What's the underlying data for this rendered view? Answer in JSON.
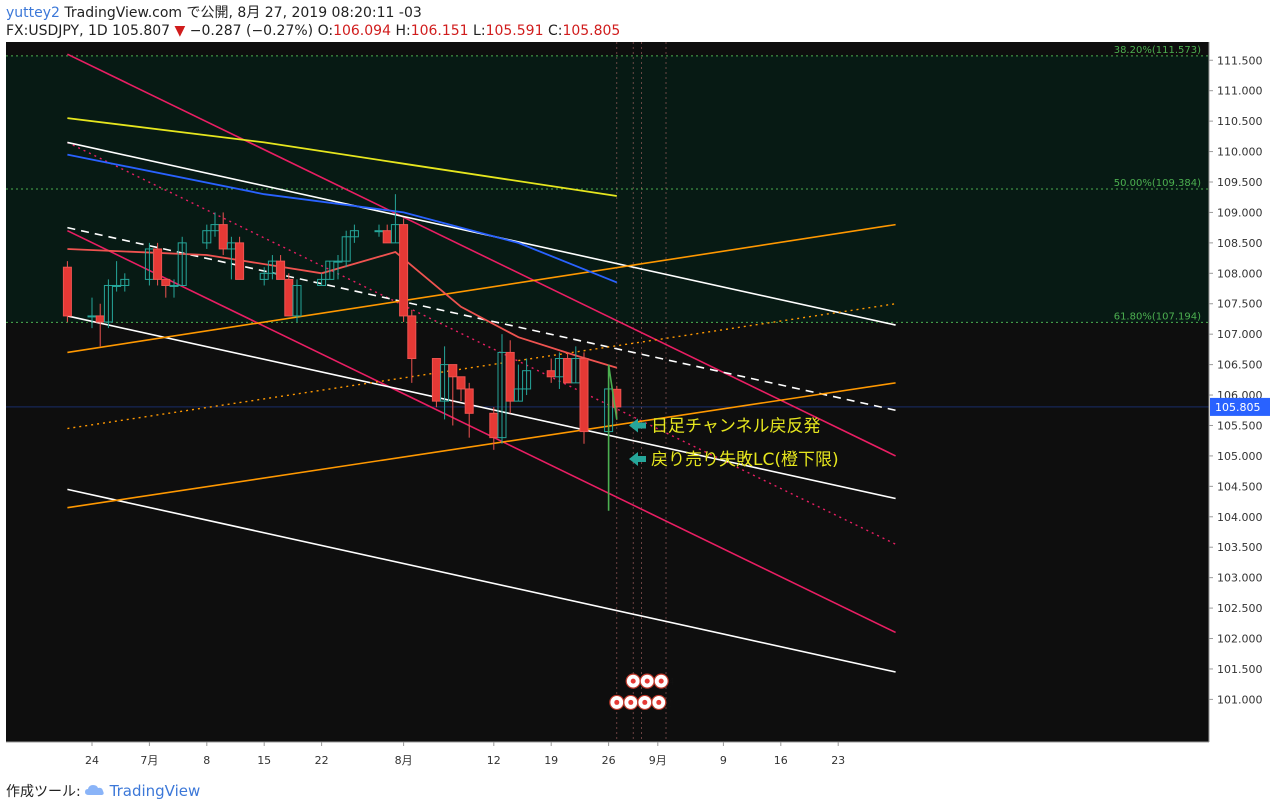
{
  "header": {
    "author": "yuttey2",
    "published": "TradingView.com で公開, 8月 27, 2019 08:20:11 -03",
    "symbol": "FX:USDJPY, 1D",
    "last": "105.807",
    "arrow": "▼",
    "change": "−0.287 (−0.27%)",
    "o_label": "O:",
    "o": "106.094",
    "h_label": "H:",
    "h": "106.151",
    "l_label": "L:",
    "l": "105.591",
    "c_label": "C:",
    "c": "105.805"
  },
  "footer": {
    "made_with": "作成ツール:",
    "brand": "TradingView",
    "logo_icon": "tradingview-cloud-icon"
  },
  "colors": {
    "bg_upper": "#071a14",
    "bg_lower": "#0e0e0e",
    "axis_bg": "#ffffff",
    "bull": "#26a69a",
    "bear": "#ef5350",
    "bear_fill": "#e53935",
    "pink": "#e91e63",
    "orange": "#ff9800",
    "white": "#ffffff",
    "yellow": "#e6e61e",
    "blue": "#2962ff",
    "fib": "#4caf50",
    "annotation": "#e6e61e",
    "arrow": "#26a69a",
    "price_tag": "#2962ff"
  },
  "chart_data": {
    "type": "candlestick",
    "symbol": "USDJPY",
    "interval": "1D",
    "ylim": [
      100.3,
      111.8
    ],
    "y_ticks": [
      "111.500",
      "111.000",
      "110.500",
      "110.000",
      "109.500",
      "109.000",
      "108.500",
      "108.000",
      "107.500",
      "107.000",
      "106.500",
      "106.000",
      "105.500",
      "105.000",
      "104.500",
      "104.000",
      "103.500",
      "103.000",
      "102.500",
      "102.000",
      "101.500",
      "101.000"
    ],
    "x_ticks": [
      "24",
      "7月",
      "8",
      "15",
      "22",
      "8月",
      "12",
      "19",
      "26",
      "9月",
      "9",
      "16",
      "23"
    ],
    "x_tick_dates": [
      "2019-06-24",
      "2019-07-01",
      "2019-07-08",
      "2019-07-15",
      "2019-07-22",
      "2019-08-01",
      "2019-08-12",
      "2019-08-19",
      "2019-08-26",
      "2019-09-01",
      "2019-09-09",
      "2019-09-16",
      "2019-09-23"
    ],
    "candles": [
      {
        "d": "2019-06-21",
        "o": 108.1,
        "h": 108.2,
        "l": 107.2,
        "c": 107.3
      },
      {
        "d": "2019-06-24",
        "o": 107.3,
        "h": 107.6,
        "l": 107.1,
        "c": 107.3
      },
      {
        "d": "2019-06-25",
        "o": 107.3,
        "h": 107.5,
        "l": 106.8,
        "c": 107.2
      },
      {
        "d": "2019-06-26",
        "o": 107.2,
        "h": 107.9,
        "l": 107.1,
        "c": 107.8
      },
      {
        "d": "2019-06-27",
        "o": 107.8,
        "h": 108.2,
        "l": 107.7,
        "c": 107.8
      },
      {
        "d": "2019-06-28",
        "o": 107.8,
        "h": 108.0,
        "l": 107.7,
        "c": 107.9
      },
      {
        "d": "2019-07-01",
        "o": 107.9,
        "h": 108.5,
        "l": 107.8,
        "c": 108.4
      },
      {
        "d": "2019-07-02",
        "o": 108.4,
        "h": 108.5,
        "l": 107.8,
        "c": 107.9
      },
      {
        "d": "2019-07-03",
        "o": 107.9,
        "h": 107.9,
        "l": 107.6,
        "c": 107.8
      },
      {
        "d": "2019-07-04",
        "o": 107.8,
        "h": 107.9,
        "l": 107.6,
        "c": 107.8
      },
      {
        "d": "2019-07-05",
        "o": 107.8,
        "h": 108.6,
        "l": 107.8,
        "c": 108.5
      },
      {
        "d": "2019-07-08",
        "o": 108.5,
        "h": 108.8,
        "l": 108.4,
        "c": 108.7
      },
      {
        "d": "2019-07-09",
        "o": 108.7,
        "h": 109.0,
        "l": 108.6,
        "c": 108.8
      },
      {
        "d": "2019-07-10",
        "o": 108.8,
        "h": 109.0,
        "l": 108.3,
        "c": 108.4
      },
      {
        "d": "2019-07-11",
        "o": 108.4,
        "h": 108.6,
        "l": 107.9,
        "c": 108.5
      },
      {
        "d": "2019-07-12",
        "o": 108.5,
        "h": 108.6,
        "l": 107.9,
        "c": 107.9
      },
      {
        "d": "2019-07-15",
        "o": 107.9,
        "h": 108.1,
        "l": 107.8,
        "c": 108.0
      },
      {
        "d": "2019-07-16",
        "o": 108.0,
        "h": 108.3,
        "l": 107.9,
        "c": 108.2
      },
      {
        "d": "2019-07-17",
        "o": 108.2,
        "h": 108.3,
        "l": 107.9,
        "c": 107.9
      },
      {
        "d": "2019-07-18",
        "o": 107.9,
        "h": 108.0,
        "l": 107.3,
        "c": 107.3
      },
      {
        "d": "2019-07-19",
        "o": 107.3,
        "h": 107.9,
        "l": 107.2,
        "c": 107.8
      },
      {
        "d": "2019-07-22",
        "o": 107.8,
        "h": 108.0,
        "l": 107.8,
        "c": 107.9
      },
      {
        "d": "2019-07-23",
        "o": 107.9,
        "h": 108.2,
        "l": 107.9,
        "c": 108.2
      },
      {
        "d": "2019-07-24",
        "o": 108.2,
        "h": 108.3,
        "l": 107.9,
        "c": 108.2
      },
      {
        "d": "2019-07-25",
        "o": 108.2,
        "h": 108.7,
        "l": 108.1,
        "c": 108.6
      },
      {
        "d": "2019-07-26",
        "o": 108.6,
        "h": 108.8,
        "l": 108.5,
        "c": 108.7
      },
      {
        "d": "2019-07-29",
        "o": 108.7,
        "h": 108.8,
        "l": 108.6,
        "c": 108.7
      },
      {
        "d": "2019-07-30",
        "o": 108.7,
        "h": 108.8,
        "l": 108.5,
        "c": 108.5
      },
      {
        "d": "2019-07-31",
        "o": 108.5,
        "h": 109.3,
        "l": 108.5,
        "c": 108.8
      },
      {
        "d": "2019-08-01",
        "o": 108.8,
        "h": 108.9,
        "l": 107.2,
        "c": 107.3
      },
      {
        "d": "2019-08-02",
        "o": 107.3,
        "h": 107.4,
        "l": 106.2,
        "c": 106.6
      },
      {
        "d": "2019-08-05",
        "o": 106.6,
        "h": 106.6,
        "l": 105.8,
        "c": 105.9
      },
      {
        "d": "2019-08-06",
        "o": 105.9,
        "h": 106.8,
        "l": 105.6,
        "c": 106.5
      },
      {
        "d": "2019-08-07",
        "o": 106.5,
        "h": 106.5,
        "l": 105.5,
        "c": 106.3
      },
      {
        "d": "2019-08-08",
        "o": 106.3,
        "h": 106.3,
        "l": 105.9,
        "c": 106.1
      },
      {
        "d": "2019-08-09",
        "o": 106.1,
        "h": 106.2,
        "l": 105.3,
        "c": 105.7
      },
      {
        "d": "2019-08-12",
        "o": 105.7,
        "h": 105.8,
        "l": 105.1,
        "c": 105.3
      },
      {
        "d": "2019-08-13",
        "o": 105.3,
        "h": 107.0,
        "l": 105.2,
        "c": 106.7
      },
      {
        "d": "2019-08-14",
        "o": 106.7,
        "h": 106.9,
        "l": 105.7,
        "c": 105.9
      },
      {
        "d": "2019-08-15",
        "o": 105.9,
        "h": 106.5,
        "l": 105.9,
        "c": 106.1
      },
      {
        "d": "2019-08-16",
        "o": 106.1,
        "h": 106.6,
        "l": 106.0,
        "c": 106.4
      },
      {
        "d": "2019-08-19",
        "o": 106.4,
        "h": 106.6,
        "l": 106.2,
        "c": 106.3
      },
      {
        "d": "2019-08-20",
        "o": 106.3,
        "h": 106.7,
        "l": 106.1,
        "c": 106.6
      },
      {
        "d": "2019-08-21",
        "o": 106.6,
        "h": 106.7,
        "l": 106.2,
        "c": 106.2
      },
      {
        "d": "2019-08-22",
        "o": 106.2,
        "h": 106.8,
        "l": 106.2,
        "c": 106.6
      },
      {
        "d": "2019-08-23",
        "o": 106.6,
        "h": 106.7,
        "l": 105.2,
        "c": 105.4
      },
      {
        "d": "2019-08-26",
        "o": 105.4,
        "h": 106.2,
        "l": 104.5,
        "c": 106.1
      },
      {
        "d": "2019-08-27",
        "o": 106.094,
        "h": 106.151,
        "l": 105.591,
        "c": 105.805
      }
    ],
    "moving_averages": [
      {
        "color": "yellow",
        "points": [
          [
            "2019-06-21",
            110.55
          ],
          [
            "2019-07-15",
            110.15
          ],
          [
            "2019-08-01",
            109.8
          ],
          [
            "2019-08-27",
            109.27
          ]
        ]
      },
      {
        "color": "blue",
        "points": [
          [
            "2019-06-21",
            109.95
          ],
          [
            "2019-07-15",
            109.3
          ],
          [
            "2019-08-01",
            109.0
          ],
          [
            "2019-08-15",
            108.5
          ],
          [
            "2019-08-27",
            107.85
          ]
        ]
      },
      {
        "color": "red",
        "points": [
          [
            "2019-06-21",
            108.4
          ],
          [
            "2019-07-08",
            108.3
          ],
          [
            "2019-07-22",
            108.0
          ],
          [
            "2019-07-31",
            108.35
          ],
          [
            "2019-08-08",
            107.45
          ],
          [
            "2019-08-15",
            106.95
          ],
          [
            "2019-08-22",
            106.65
          ],
          [
            "2019-08-27",
            106.45
          ]
        ]
      }
    ],
    "trend_lines": [
      {
        "color": "pink",
        "style": "solid",
        "from": [
          "2019-06-21",
          111.6
        ],
        "to": [
          "2019-09-30",
          105.0
        ]
      },
      {
        "color": "pink",
        "style": "solid",
        "from": [
          "2019-06-21",
          108.7
        ],
        "to": [
          "2019-09-30",
          102.1
        ]
      },
      {
        "color": "pink",
        "style": "dotted",
        "from": [
          "2019-06-21",
          110.15
        ],
        "to": [
          "2019-09-30",
          103.55
        ]
      },
      {
        "color": "white",
        "style": "solid",
        "from": [
          "2019-06-21",
          110.15
        ],
        "to": [
          "2019-09-30",
          107.15
        ]
      },
      {
        "color": "white",
        "style": "solid",
        "from": [
          "2019-06-21",
          107.3
        ],
        "to": [
          "2019-09-30",
          104.3
        ]
      },
      {
        "color": "white",
        "style": "solid",
        "from": [
          "2019-06-21",
          104.45
        ],
        "to": [
          "2019-09-30",
          101.45
        ]
      },
      {
        "color": "white",
        "style": "dashed",
        "from": [
          "2019-06-21",
          108.75
        ],
        "to": [
          "2019-09-30",
          105.75
        ]
      },
      {
        "color": "orange",
        "style": "solid",
        "from": [
          "2019-06-21",
          106.7
        ],
        "to": [
          "2019-09-30",
          108.8
        ]
      },
      {
        "color": "orange",
        "style": "solid",
        "from": [
          "2019-06-21",
          104.15
        ],
        "to": [
          "2019-09-30",
          106.2
        ]
      },
      {
        "color": "orange",
        "style": "dotted",
        "from": [
          "2019-06-21",
          105.45
        ],
        "to": [
          "2019-09-30",
          107.5
        ]
      }
    ],
    "fib_levels": [
      {
        "label": "38.20%(111.573)",
        "value": 111.573
      },
      {
        "label": "50.00%(109.384)",
        "value": 109.384
      },
      {
        "label": "61.80%(107.194)",
        "value": 107.194
      }
    ],
    "current_price": {
      "label": "105.805",
      "value": 105.805
    },
    "annotations": [
      {
        "text": "日足チャンネル戻反発",
        "price": 105.5
      },
      {
        "text": "戻り売り失敗LC(橙下限)",
        "price": 104.95
      }
    ],
    "event_markers": {
      "row1": [
        "4",
        "8",
        "4"
      ],
      "row2": [
        "4",
        "3",
        "8",
        "2"
      ]
    }
  }
}
